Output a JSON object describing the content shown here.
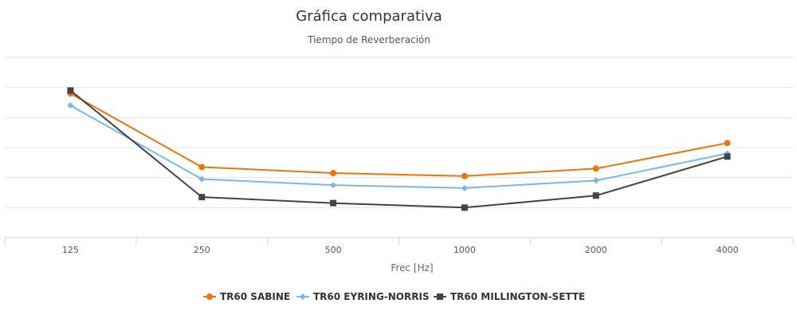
{
  "chart_data": {
    "type": "line",
    "title": "Gráfica comparativa",
    "subtitle": "Tiempo de Reverberación",
    "xlabel": "Frec [Hz]",
    "ylabel": "",
    "categories": [
      "125",
      "250",
      "500",
      "1000",
      "2000",
      "4000"
    ],
    "ylim": [
      0,
      1.2
    ],
    "grid": true,
    "legend_position": "bottom",
    "series": [
      {
        "name": "TR60 SABINE",
        "color": "#e8760c",
        "marker": "circle",
        "values": [
          0.96,
          0.47,
          0.43,
          0.41,
          0.46,
          0.63
        ]
      },
      {
        "name": "TR60 EYRING-NORRIS",
        "color": "#7cb5ec",
        "marker": "diamond",
        "values": [
          0.88,
          0.39,
          0.35,
          0.33,
          0.38,
          0.56
        ]
      },
      {
        "name": "TR60 MILLINGTON-SETTE",
        "color": "#434348",
        "marker": "square",
        "values": [
          0.98,
          0.27,
          0.23,
          0.2,
          0.28,
          0.54
        ]
      }
    ]
  }
}
